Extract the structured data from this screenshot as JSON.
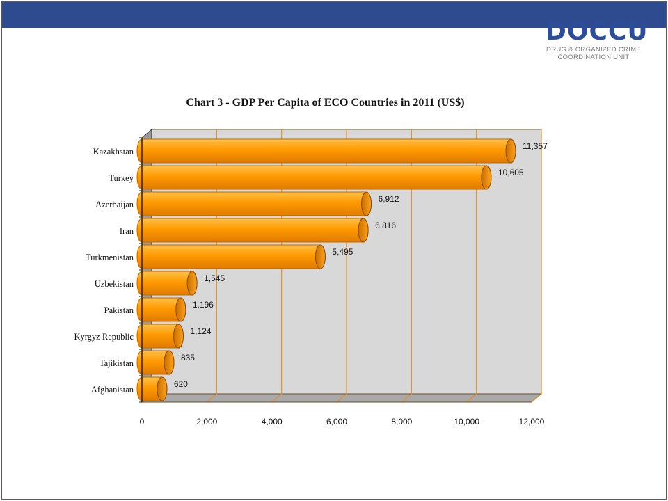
{
  "logo": {
    "name": "DOCCU",
    "line1": "DRUG & ORGANIZED CRIME",
    "line2": "COORDINATION UNIT"
  },
  "colors": {
    "header_band": "#2f4b8f",
    "bar_fill": "#ff9e00",
    "bar_edge": "#c06a00",
    "plot_back": "#d8d8d8",
    "grid": "#e0902a"
  },
  "chart_data": {
    "type": "bar",
    "orientation": "horizontal",
    "title": "Chart 3 - GDP Per Capita of ECO Countries in 2011 (US$)",
    "categories": [
      "Kazakhstan",
      "Turkey",
      "Azerbaijan",
      "Iran",
      "Turkmenistan",
      "Uzbekistan",
      "Pakistan",
      "Kyrgyz Republic",
      "Tajikistan",
      "Afghanistan"
    ],
    "values": [
      11357,
      10605,
      6912,
      6816,
      5495,
      1545,
      1196,
      1124,
      835,
      620
    ],
    "data_labels": [
      "11,357",
      "10,605",
      "6,912",
      "6,816",
      "5,495",
      "1,545",
      "1,196",
      "1,124",
      "835",
      "620"
    ],
    "xlim": [
      0,
      12000
    ],
    "x_ticks": [
      0,
      2000,
      4000,
      6000,
      8000,
      10000,
      12000
    ],
    "x_tick_labels": [
      "0",
      "2,000",
      "4,000",
      "6,000",
      "8,000",
      "10,000",
      "12,000"
    ],
    "xlabel": "",
    "ylabel": "",
    "grid": true,
    "legend": "none",
    "style": "3d-cylinder"
  }
}
